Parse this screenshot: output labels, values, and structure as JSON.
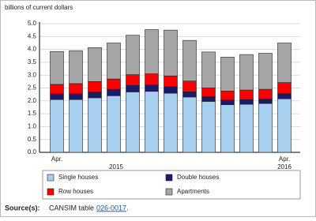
{
  "chart_data": {
    "type": "stacked_bar",
    "y_axis_label": "billions of current dollars",
    "categories": [
      "Apr.",
      null,
      null,
      null,
      null,
      null,
      null,
      null,
      null,
      null,
      null,
      null,
      "Apr."
    ],
    "x_group_labels": [
      "2015",
      "2016"
    ],
    "series": [
      {
        "name": "Single houses",
        "color": "#a6cff0",
        "values": [
          2.05,
          2.05,
          2.12,
          2.2,
          2.35,
          2.37,
          2.3,
          2.15,
          1.98,
          1.85,
          1.87,
          1.9,
          2.08
        ]
      },
      {
        "name": "Double houses",
        "color": "#1b1b6b",
        "values": [
          0.22,
          0.22,
          0.22,
          0.25,
          0.25,
          0.25,
          0.25,
          0.2,
          0.18,
          0.18,
          0.18,
          0.18,
          0.2
        ]
      },
      {
        "name": "Row houses",
        "color": "#ff0000",
        "values": [
          0.37,
          0.4,
          0.41,
          0.4,
          0.42,
          0.43,
          0.42,
          0.42,
          0.34,
          0.35,
          0.37,
          0.37,
          0.43
        ]
      },
      {
        "name": "Apartments",
        "color": "#a6a6a6",
        "values": [
          1.28,
          1.28,
          1.32,
          1.4,
          1.53,
          1.72,
          1.78,
          1.58,
          1.4,
          1.32,
          1.38,
          1.4,
          1.54
        ]
      }
    ],
    "ylim": [
      0,
      5
    ],
    "yticks": [
      {
        "value": 0,
        "label": "0.0"
      },
      0.5,
      {
        "value": 1,
        "label": "1.0"
      },
      1.5,
      {
        "value": 2,
        "label": "2.0"
      },
      2.5,
      {
        "value": 3,
        "label": "3.0"
      },
      3.5,
      {
        "value": 4,
        "label": "4.0"
      },
      4.5,
      {
        "value": 5,
        "label": "5.0"
      }
    ],
    "grid": true,
    "source_label": "Source(s):",
    "source_text": "CANSIM table",
    "source_link": "026-0017",
    "source_end": "."
  }
}
